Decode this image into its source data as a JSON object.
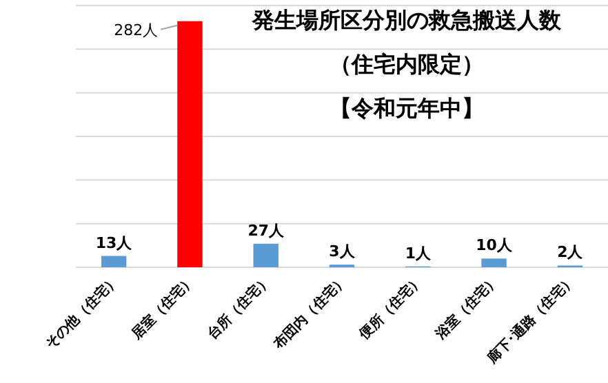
{
  "chart_data": {
    "type": "bar",
    "title": "発生場所区分別の救急搬送人数",
    "subtitle": "（住宅内限定）",
    "annotations": [
      "【令和元年中】"
    ],
    "categories": [
      "その他（住宅）",
      "居室（住宅）",
      "台所（住宅）",
      "布団内（住宅）",
      "便所（住宅）",
      "浴室（住宅）",
      "廊下･通路（住宅）"
    ],
    "values": [
      13,
      282,
      27,
      3,
      1,
      10,
      2
    ],
    "value_labels": [
      "13人",
      "282人",
      "27人",
      "3人",
      "1人",
      "10人",
      "2人"
    ],
    "colors": [
      "#5b9bd5",
      "#ff0000",
      "#5b9bd5",
      "#5b9bd5",
      "#5b9bd5",
      "#5b9bd5",
      "#5b9bd5"
    ],
    "ylim": [
      0,
      300
    ],
    "yticks": [
      {
        "value": 0,
        "label": null
      },
      {
        "value": 50,
        "label": null
      },
      {
        "value": 100,
        "label": null
      },
      {
        "value": 150,
        "label": null
      },
      {
        "value": 200,
        "label": null
      },
      {
        "value": 250,
        "label": null
      },
      {
        "value": 300,
        "label": null
      }
    ],
    "grid": "y",
    "tick_labels": "x"
  }
}
